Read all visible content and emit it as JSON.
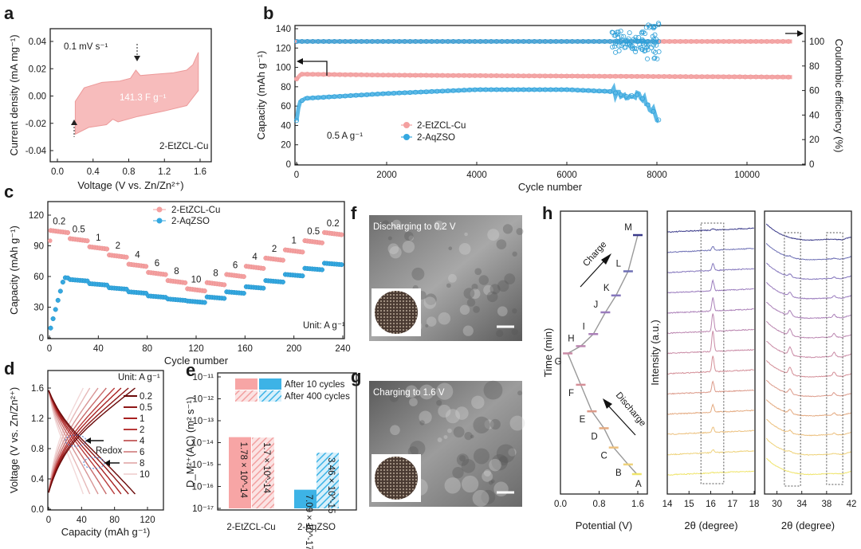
{
  "figure": {
    "panel_letters": [
      "a",
      "b",
      "c",
      "d",
      "e",
      "f",
      "g",
      "h"
    ],
    "f_caption": "Discharging to 0.2 V",
    "g_caption": "Charging to 1.6 V"
  },
  "chart_data": [
    {
      "panel": "a",
      "type": "line",
      "xlabel": "Voltage (V vs. Zn/Zn²⁺)",
      "ylabel": "Current density (mA mg⁻¹)",
      "xticks": [
        "0.0",
        "0.4",
        "0.8",
        "1.2",
        "1.6"
      ],
      "yticks": [
        "-0.04",
        "-0.02",
        "0.00",
        "0.02",
        "0.04"
      ],
      "xlim": [
        0,
        1.6
      ],
      "ylim": [
        -0.04,
        0.04
      ],
      "annotations": {
        "scan_rate": "0.1 mV s⁻¹",
        "capacitance": "141.3 F g⁻¹",
        "sample": "2-EtZCL-Cu"
      },
      "upper": [
        [
          0.2,
          -0.004
        ],
        [
          0.3,
          0.006
        ],
        [
          0.5,
          0.01
        ],
        [
          0.7,
          0.011
        ],
        [
          0.82,
          0.013
        ],
        [
          0.88,
          0.019
        ],
        [
          0.93,
          0.015
        ],
        [
          1.1,
          0.016
        ],
        [
          1.3,
          0.017
        ],
        [
          1.45,
          0.019
        ],
        [
          1.52,
          0.023
        ],
        [
          1.58,
          0.032
        ]
      ],
      "lower": [
        [
          0.2,
          -0.028
        ],
        [
          0.35,
          -0.023
        ],
        [
          0.55,
          -0.021
        ],
        [
          0.62,
          -0.017
        ],
        [
          0.68,
          -0.019
        ],
        [
          0.9,
          -0.015
        ],
        [
          1.2,
          -0.011
        ],
        [
          1.45,
          -0.007
        ],
        [
          1.58,
          0.004
        ]
      ]
    },
    {
      "panel": "b",
      "type": "scatter",
      "xlabel": "Cycle number",
      "ylabel": "Capacity (mAh g⁻¹)",
      "y2label": "Coulombic efficiency (%)",
      "xticks": [
        "0",
        "2000",
        "4000",
        "6000",
        "8000",
        "10000"
      ],
      "yticks": [
        "0",
        "20",
        "40",
        "60",
        "80",
        "100",
        "120",
        "140"
      ],
      "y2ticks": [
        "0",
        "20",
        "40",
        "60",
        "80",
        "100"
      ],
      "xlim": [
        0,
        11000
      ],
      "ylim": [
        0,
        140
      ],
      "y2lim": [
        0,
        100
      ],
      "annotation": "0.5 A g⁻¹",
      "legend": [
        "2-EtZCL-Cu",
        "2-AqZSO"
      ],
      "series": [
        {
          "name": "2-EtZCL-Cu",
          "capacity": [
            [
              0,
              88
            ],
            [
              100,
              93
            ],
            [
              2000,
              92
            ],
            [
              6000,
              91
            ],
            [
              11000,
              90
            ]
          ],
          "ce": [
            [
              0,
              100
            ],
            [
              11000,
              100
            ]
          ]
        },
        {
          "name": "2-AqZSO",
          "capacity": [
            [
              0,
              45
            ],
            [
              60,
              64
            ],
            [
              200,
              68
            ],
            [
              2000,
              73
            ],
            [
              4000,
              77
            ],
            [
              6000,
              77
            ],
            [
              7000,
              75
            ],
            [
              7300,
              70
            ],
            [
              7600,
              72
            ],
            [
              7900,
              56
            ],
            [
              8050,
              45
            ]
          ],
          "ce": [
            [
              0,
              100
            ],
            [
              7000,
              100
            ],
            [
              8050,
              100
            ]
          ]
        }
      ]
    },
    {
      "panel": "c",
      "type": "scatter",
      "xlabel": "Cycle number",
      "ylabel": "Capacity (mAh g⁻¹)",
      "xticks": [
        "0",
        "40",
        "80",
        "120",
        "160",
        "200",
        "240"
      ],
      "yticks": [
        "0",
        "30",
        "60",
        "90",
        "120"
      ],
      "xlim": [
        0,
        240
      ],
      "ylim": [
        0,
        120
      ],
      "unit": "Unit: A g⁻¹",
      "legend": [
        "2-EtZCL-Cu",
        "2-AqZSO"
      ],
      "rate_labels": [
        "0.2",
        "0.5",
        "1",
        "2",
        "4",
        "6",
        "8",
        "10",
        "8",
        "6",
        "4",
        "2",
        "1",
        "0.5",
        "0.2"
      ],
      "series": [
        {
          "name": "2-EtZCL-Cu",
          "values": [
            105,
            97,
            89,
            81,
            72,
            64,
            56,
            48,
            54,
            62,
            70,
            78,
            86,
            95,
            103
          ]
        },
        {
          "name": "2-AqZSO",
          "values": [
            60,
            57,
            53,
            49,
            45,
            41,
            38,
            36,
            40,
            45,
            50,
            56,
            62,
            68,
            73
          ]
        }
      ]
    },
    {
      "panel": "d",
      "type": "line",
      "xlabel": "Capacity (mAh g⁻¹)",
      "ylabel": "Voltage (V vs. Zn/Zn²⁺)",
      "xticks": [
        "0",
        "40",
        "80",
        "120"
      ],
      "yticks": [
        "0.0",
        "0.4",
        "0.8",
        "1.2",
        "1.6"
      ],
      "xlim": [
        0,
        125
      ],
      "ylim": [
        0,
        1.75
      ],
      "unit": "Unit: A g⁻¹",
      "annotation": "Redox",
      "legend": [
        "0.2",
        "0.5",
        "1",
        "2",
        "4",
        "6",
        "8",
        "10"
      ],
      "capacities": [
        105,
        97,
        88,
        80,
        70,
        60,
        50,
        42
      ]
    },
    {
      "panel": "e",
      "type": "bar",
      "scale": "log",
      "ylabel": "D_M²⁺(AC) (m² s⁻¹)",
      "yticks": [
        "10⁻¹⁷",
        "10⁻¹⁶",
        "10⁻¹⁵",
        "10⁻¹⁴",
        "10⁻¹³",
        "10⁻¹²",
        "10⁻¹¹"
      ],
      "ylim": [
        1e-17,
        1e-11
      ],
      "categories": [
        "2-EtZCL-Cu",
        "2-AqZSO"
      ],
      "legend": [
        "After 10 cycles",
        "After 400 cycles"
      ],
      "series": [
        {
          "name": "After 10 cycles",
          "values": [
            1.78e-14,
            7.09e-17
          ],
          "labels": [
            "1.78 × 10^-14",
            "7.09 × 10^-17"
          ]
        },
        {
          "name": "After 400 cycles",
          "values": [
            1.7e-14,
            3.46e-15
          ],
          "labels": [
            "1.7 × 10^-14",
            "3.46 × 10^-15"
          ]
        }
      ]
    },
    {
      "panel": "h",
      "type": "line",
      "xlabel": "Potential (V)",
      "ylabel": "Time (min)",
      "xticks": [
        "0.0",
        "0.8",
        "1.6"
      ],
      "xlim": [
        0,
        1.6
      ],
      "arrows": [
        "Charge",
        "Discharge"
      ],
      "points": [
        {
          "label": "A",
          "potential": 1.58,
          "time": 0.0
        },
        {
          "label": "B",
          "potential": 1.4,
          "time": 0.04
        },
        {
          "label": "C",
          "potential": 1.1,
          "time": 0.11
        },
        {
          "label": "D",
          "potential": 0.9,
          "time": 0.19
        },
        {
          "label": "E",
          "potential": 0.65,
          "time": 0.26
        },
        {
          "label": "F",
          "potential": 0.42,
          "time": 0.37
        },
        {
          "label": "G",
          "potential": 0.15,
          "time": 0.5
        },
        {
          "label": "H",
          "potential": 0.42,
          "time": 0.53
        },
        {
          "label": "I",
          "potential": 0.68,
          "time": 0.58
        },
        {
          "label": "J",
          "potential": 0.93,
          "time": 0.67
        },
        {
          "label": "K",
          "potential": 1.15,
          "time": 0.74
        },
        {
          "label": "L",
          "potential": 1.4,
          "time": 0.84
        },
        {
          "label": "M",
          "potential": 1.6,
          "time": 0.99
        }
      ]
    },
    {
      "panel": "h-xrd-1",
      "type": "line",
      "xlabel": "2θ (degree)",
      "ylabel": "Intensity (a.u.)",
      "xticks": [
        "14",
        "15",
        "16",
        "17",
        "18"
      ],
      "xlim": [
        14,
        18
      ],
      "peak_position": 16.1,
      "peak_heights": [
        0.02,
        0.12,
        0.22,
        0.3,
        0.42,
        0.62,
        0.82,
        0.7,
        0.52,
        0.4,
        0.28,
        0.15,
        0.05
      ]
    },
    {
      "panel": "h-xrd-2",
      "type": "line",
      "xlabel": "2θ (degree)",
      "xticks": [
        "30",
        "34",
        "38",
        "42"
      ],
      "xlim": [
        28,
        42
      ],
      "peak_positions": [
        32.1,
        39.2
      ],
      "peak_heights": [
        0,
        0.1,
        0.2,
        0.3,
        0.4,
        0.55,
        0.6,
        0.5,
        0.4,
        0.3,
        0.2,
        0.1,
        0
      ]
    }
  ]
}
